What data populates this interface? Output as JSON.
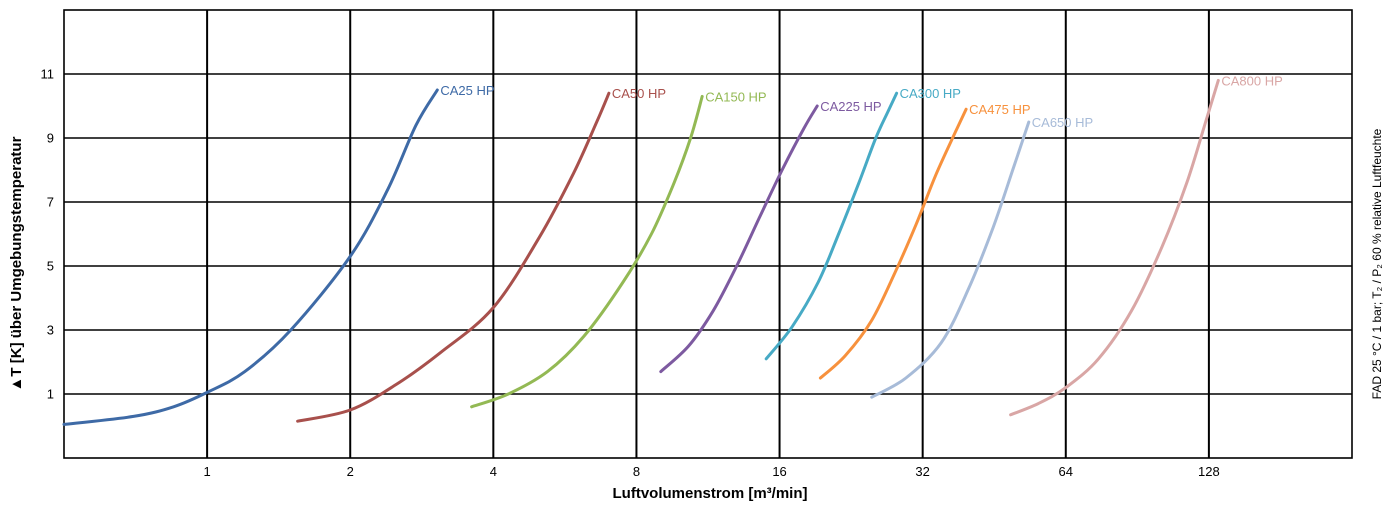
{
  "chart_data": {
    "type": "line",
    "xlabel": "Luftvolumenstrom [m³/min]",
    "ylabel": "▲T [K] über Umgebungstemperatur",
    "note": "FAD 25 °C / 1 bar; T₂ / P₂ 60 % relative Luftfeuchte",
    "x_scale": "log2",
    "xlim": [
      0.5,
      256
    ],
    "ylim": [
      -1,
      13
    ],
    "x_ticks": [
      "1",
      "2",
      "4",
      "8",
      "16",
      "32",
      "64",
      "128"
    ],
    "y_ticks": [
      "1",
      "3",
      "5",
      "7",
      "9",
      "11"
    ],
    "grid": true,
    "series": [
      {
        "name": "CA25 HP",
        "color": "#3e6aa6",
        "x": [
          0.5,
          0.7,
          0.85,
          1.0,
          1.2,
          1.5,
          2.0,
          2.4,
          2.75,
          3.05
        ],
        "y": [
          0.05,
          0.3,
          0.6,
          1.05,
          1.7,
          3.0,
          5.3,
          7.4,
          9.4,
          10.5
        ]
      },
      {
        "name": "CA50 HP",
        "color": "#a8504c",
        "x": [
          1.55,
          2.0,
          2.5,
          3.1,
          4.0,
          5.0,
          5.9,
          6.6,
          7.0
        ],
        "y": [
          0.15,
          0.5,
          1.3,
          2.3,
          3.7,
          5.9,
          7.9,
          9.5,
          10.4
        ]
      },
      {
        "name": "CA150 HP",
        "color": "#93b954",
        "x": [
          3.6,
          4.3,
          5.2,
          6.2,
          7.5,
          8.6,
          9.6,
          10.4,
          11.0
        ],
        "y": [
          0.6,
          1.0,
          1.7,
          2.8,
          4.5,
          6.0,
          7.6,
          9.0,
          10.3
        ]
      },
      {
        "name": "CA225 HP",
        "color": "#7d5aa0",
        "x": [
          9.0,
          10.3,
          11.6,
          13.0,
          14.5,
          16.2,
          18.0,
          19.2
        ],
        "y": [
          1.7,
          2.5,
          3.6,
          5.0,
          6.5,
          8.0,
          9.3,
          10.0
        ]
      },
      {
        "name": "CA300 HP",
        "color": "#47aac5",
        "x": [
          15.0,
          17.0,
          19.3,
          21.3,
          23.5,
          25.5,
          27.0,
          28.2
        ],
        "y": [
          2.1,
          3.1,
          4.5,
          6.0,
          7.6,
          9.0,
          9.8,
          10.4
        ]
      },
      {
        "name": "CA475 HP",
        "color": "#f7913d",
        "x": [
          19.5,
          22.0,
          25.0,
          28.0,
          31.0,
          34.0,
          37.0,
          39.5
        ],
        "y": [
          1.5,
          2.2,
          3.3,
          4.8,
          6.3,
          7.8,
          9.0,
          9.9
        ]
      },
      {
        "name": "CA650 HP",
        "color": "#a7bbd8",
        "x": [
          25.0,
          29.5,
          35.0,
          40.0,
          45.0,
          49.5,
          53.5
        ],
        "y": [
          0.9,
          1.5,
          2.6,
          4.3,
          6.2,
          8.0,
          9.5
        ]
      },
      {
        "name": "CA800 HP",
        "color": "#d9a6a5",
        "x": [
          49.0,
          56.0,
          64.0,
          75.0,
          88.0,
          102.0,
          115.0,
          126.0,
          134.0
        ],
        "y": [
          0.35,
          0.7,
          1.2,
          2.1,
          3.6,
          5.6,
          7.6,
          9.5,
          10.8
        ]
      }
    ]
  }
}
